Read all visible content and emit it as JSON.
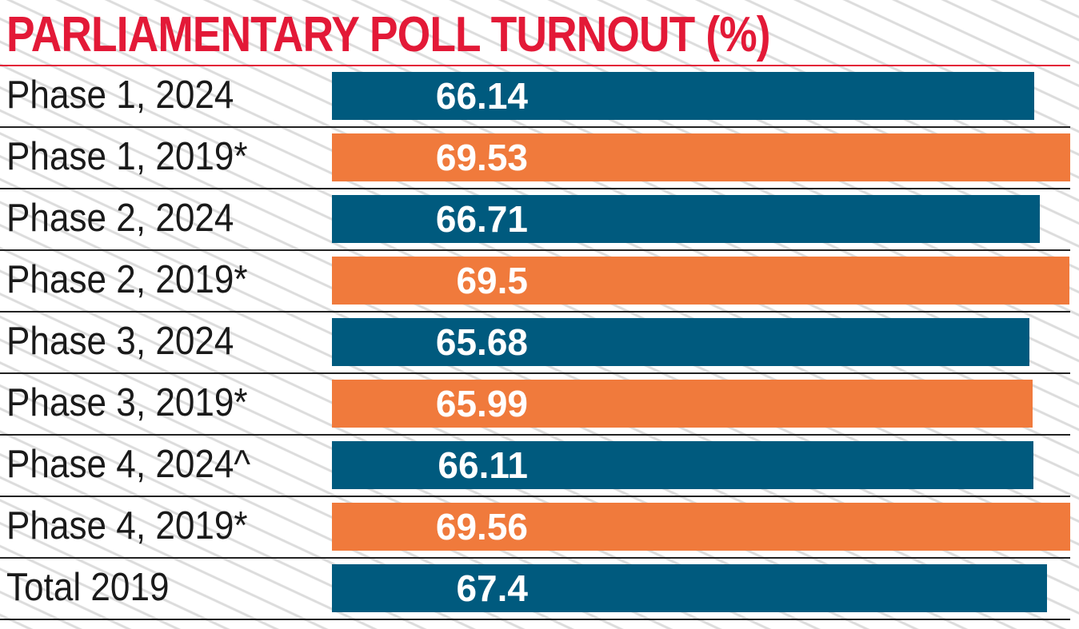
{
  "chart_data": {
    "type": "bar",
    "orientation": "horizontal",
    "title": "PARLIAMENTARY POLL TURNOUT (%)",
    "xlabel": "",
    "ylabel": "",
    "categories": [
      "Phase 1, 2024",
      "Phase 1, 2019*",
      "Phase 2, 2024",
      "Phase 2, 2019*",
      "Phase 3, 2024",
      "Phase 3, 2019*",
      "Phase 4, 2024^",
      "Phase 4, 2019*",
      "Total 2019"
    ],
    "values": [
      66.14,
      69.53,
      66.71,
      69.5,
      65.68,
      65.99,
      66.11,
      69.56,
      67.4
    ],
    "value_labels": [
      "66.14",
      "69.53",
      "66.71",
      "69.5",
      "65.68",
      "65.99",
      "66.11",
      "69.56",
      "67.4"
    ],
    "bar_colors": [
      "#005a7e",
      "#f07a3c",
      "#005a7e",
      "#f07a3c",
      "#005a7e",
      "#f07a3c",
      "#005a7e",
      "#f07a3c",
      "#005a7e"
    ],
    "xlim": [
      0,
      70
    ],
    "grid": false,
    "legend": "none"
  },
  "colors": {
    "title": "#e31937",
    "year_2024": "#005a7e",
    "year_2019": "#f07a3c"
  }
}
